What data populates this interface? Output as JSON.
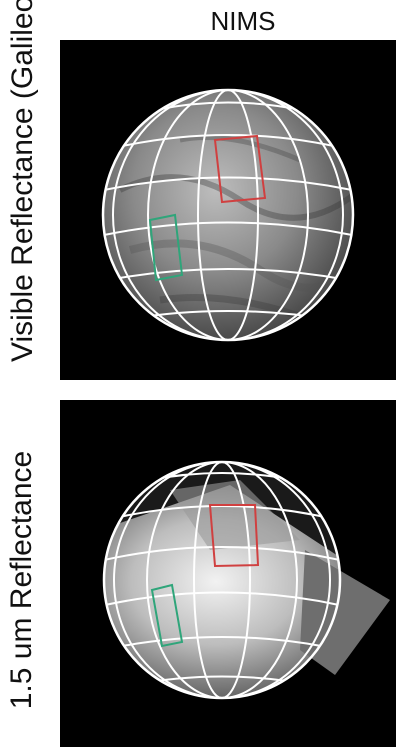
{
  "header": {
    "title": "NIMS"
  },
  "rows": [
    {
      "label": "Visible Reflectance (Galileo)"
    },
    {
      "label": "1.5 um Reflectance"
    }
  ],
  "colors": {
    "red_region": "#d04040",
    "green_region": "#2fa57a",
    "grid": "#ffffff"
  }
}
